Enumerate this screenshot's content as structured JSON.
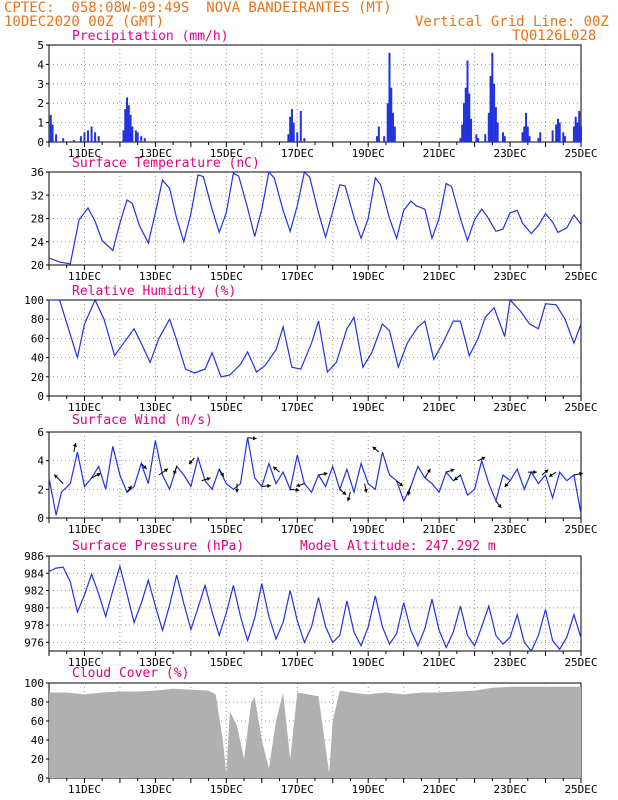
{
  "header": {
    "line1_left": "CPTEC:  058:08W-09:49S  NOVA BANDEIRANTES (MT)",
    "line2_left": "10DEC2020 00Z (GMT)",
    "line2_right": "Vertical Grid Line: 00Z",
    "line3_right": "TQ0126L028"
  },
  "colors": {
    "header": "#e8731a",
    "title": "#e0008a",
    "series": "#2233dd",
    "cloud": "#b0b0b0"
  },
  "x_axis": {
    "ticks": [
      "11DEC",
      "13DEC",
      "15DEC",
      "17DEC",
      "19DEC",
      "21DEC",
      "23DEC",
      "25DEC"
    ],
    "grid": "00Z daily, dotted",
    "range_days": [
      10,
      25
    ]
  },
  "chart_data": [
    {
      "type": "bar",
      "title": "Precipitation (mm/h)",
      "ylim": [
        0,
        5
      ],
      "yticks": [
        0,
        1,
        2,
        3,
        4,
        5
      ],
      "bars": [
        [
          10.05,
          1.4
        ],
        [
          10.1,
          0.9
        ],
        [
          10.2,
          0.4
        ],
        [
          10.4,
          0.2
        ],
        [
          10.7,
          0.1
        ],
        [
          10.9,
          0.3
        ],
        [
          11.0,
          0.5
        ],
        [
          11.1,
          0.6
        ],
        [
          11.2,
          0.8
        ],
        [
          11.3,
          0.5
        ],
        [
          11.4,
          0.3
        ],
        [
          12.1,
          0.6
        ],
        [
          12.15,
          1.7
        ],
        [
          12.2,
          2.3
        ],
        [
          12.25,
          1.9
        ],
        [
          12.3,
          1.4
        ],
        [
          12.35,
          0.8
        ],
        [
          12.45,
          0.6
        ],
        [
          12.5,
          0.5
        ],
        [
          12.6,
          0.3
        ],
        [
          12.7,
          0.2
        ],
        [
          16.75,
          0.4
        ],
        [
          16.8,
          1.3
        ],
        [
          16.85,
          1.7
        ],
        [
          16.9,
          1.0
        ],
        [
          17.0,
          0.5
        ],
        [
          17.1,
          1.6
        ],
        [
          17.2,
          0.2
        ],
        [
          19.25,
          0.3
        ],
        [
          19.3,
          0.8
        ],
        [
          19.45,
          0.3
        ],
        [
          19.55,
          2.0
        ],
        [
          19.6,
          4.6
        ],
        [
          19.65,
          2.8
        ],
        [
          19.7,
          1.5
        ],
        [
          19.75,
          0.8
        ],
        [
          21.6,
          0.2
        ],
        [
          21.65,
          0.9
        ],
        [
          21.7,
          2.0
        ],
        [
          21.75,
          2.8
        ],
        [
          21.8,
          4.2
        ],
        [
          21.85,
          2.5
        ],
        [
          21.9,
          1.2
        ],
        [
          22.05,
          0.4
        ],
        [
          22.1,
          0.2
        ],
        [
          22.3,
          0.4
        ],
        [
          22.4,
          1.5
        ],
        [
          22.45,
          3.4
        ],
        [
          22.5,
          4.6
        ],
        [
          22.55,
          3.0
        ],
        [
          22.6,
          1.8
        ],
        [
          22.65,
          1.0
        ],
        [
          22.8,
          0.5
        ],
        [
          22.85,
          0.3
        ],
        [
          23.35,
          0.5
        ],
        [
          23.4,
          0.8
        ],
        [
          23.45,
          1.5
        ],
        [
          23.5,
          0.8
        ],
        [
          23.55,
          0.3
        ],
        [
          23.8,
          0.2
        ],
        [
          23.85,
          0.5
        ],
        [
          24.2,
          0.6
        ],
        [
          24.3,
          0.9
        ],
        [
          24.35,
          1.2
        ],
        [
          24.4,
          1.0
        ],
        [
          24.5,
          0.5
        ],
        [
          24.55,
          0.3
        ],
        [
          24.8,
          0.8
        ],
        [
          24.85,
          1.3
        ],
        [
          24.9,
          1.0
        ],
        [
          24.95,
          1.6
        ],
        [
          25.0,
          0.8
        ]
      ]
    },
    {
      "type": "line",
      "title": "Surface Temperature (nC)",
      "ylim": [
        20,
        36
      ],
      "yticks": [
        20,
        24,
        28,
        32,
        36
      ],
      "x": [
        10.0,
        10.3,
        10.6,
        10.85,
        11.1,
        11.3,
        11.5,
        11.8,
        12.0,
        12.2,
        12.35,
        12.55,
        12.8,
        13.0,
        13.2,
        13.4,
        13.6,
        13.8,
        14.0,
        14.2,
        14.35,
        14.6,
        14.8,
        15.0,
        15.2,
        15.35,
        15.6,
        15.8,
        16.0,
        16.2,
        16.35,
        16.6,
        16.8,
        17.0,
        17.2,
        17.35,
        17.6,
        17.8,
        18.0,
        18.2,
        18.35,
        18.6,
        18.8,
        19.0,
        19.2,
        19.35,
        19.6,
        19.8,
        20.0,
        20.2,
        20.35,
        20.6,
        20.8,
        21.0,
        21.2,
        21.35,
        21.6,
        21.8,
        22.0,
        22.2,
        22.35,
        22.6,
        22.8,
        23.0,
        23.2,
        23.35,
        23.6,
        23.8,
        24.0,
        24.2,
        24.35,
        24.6,
        24.8,
        25.0
      ],
      "y": [
        21.2,
        20.5,
        20.2,
        27.8,
        29.8,
        27.5,
        24.2,
        22.5,
        27.2,
        31.2,
        30.6,
        26.8,
        23.8,
        29.0,
        34.6,
        33.2,
        28.0,
        24.0,
        28.8,
        35.5,
        35.2,
        29.6,
        25.6,
        29.0,
        35.8,
        35.3,
        29.8,
        24.9,
        29.6,
        36.0,
        35.0,
        29.4,
        25.8,
        30.2,
        36.0,
        35.1,
        29.0,
        24.8,
        29.2,
        33.8,
        33.6,
        28.2,
        24.6,
        28.0,
        35.0,
        33.8,
        28.0,
        24.6,
        29.4,
        31.0,
        30.2,
        29.6,
        24.6,
        28.0,
        34.0,
        33.5,
        28.0,
        24.2,
        27.8,
        29.6,
        28.4,
        25.8,
        26.2,
        29.0,
        29.4,
        27.2,
        25.4,
        26.8,
        28.8,
        27.4,
        25.6,
        26.4,
        28.6,
        27.0
      ]
    },
    {
      "type": "line",
      "title": "Relative Humidity (%)",
      "ylim": [
        0,
        100
      ],
      "yticks": [
        0,
        20,
        40,
        60,
        80,
        100
      ],
      "x": [
        10.0,
        10.3,
        10.55,
        10.8,
        11.0,
        11.3,
        11.55,
        11.85,
        12.1,
        12.4,
        12.6,
        12.85,
        13.1,
        13.4,
        13.6,
        13.85,
        14.1,
        14.4,
        14.6,
        14.85,
        15.1,
        15.4,
        15.6,
        15.85,
        16.1,
        16.4,
        16.6,
        16.85,
        17.1,
        17.4,
        17.6,
        17.85,
        18.1,
        18.4,
        18.6,
        18.85,
        19.1,
        19.4,
        19.6,
        19.85,
        20.1,
        20.4,
        20.6,
        20.85,
        21.1,
        21.4,
        21.6,
        21.85,
        22.1,
        22.3,
        22.55,
        22.85,
        23.0,
        23.3,
        23.55,
        23.8,
        24.0,
        24.3,
        24.55,
        24.8,
        25.0
      ],
      "y": [
        100,
        100,
        70,
        40,
        75,
        100,
        80,
        42,
        55,
        70,
        55,
        35,
        60,
        80,
        58,
        28,
        24,
        28,
        45,
        20,
        22,
        33,
        46,
        25,
        32,
        48,
        72,
        30,
        28,
        55,
        78,
        25,
        35,
        70,
        82,
        30,
        45,
        75,
        68,
        30,
        55,
        72,
        78,
        38,
        55,
        78,
        78,
        42,
        60,
        82,
        92,
        62,
        100,
        88,
        75,
        70,
        96,
        95,
        80,
        55,
        75
      ]
    },
    {
      "type": "line",
      "title": "Surface Wind (m/s)",
      "ylim": [
        0,
        6
      ],
      "yticks": [
        0,
        2,
        4,
        6
      ],
      "x": [
        10.0,
        10.2,
        10.35,
        10.6,
        10.8,
        11.0,
        11.2,
        11.4,
        11.6,
        11.8,
        12.0,
        12.2,
        12.4,
        12.6,
        12.8,
        13.0,
        13.2,
        13.4,
        13.6,
        13.8,
        14.0,
        14.2,
        14.4,
        14.6,
        14.8,
        15.0,
        15.2,
        15.4,
        15.6,
        15.8,
        16.0,
        16.2,
        16.4,
        16.6,
        16.8,
        17.0,
        17.2,
        17.4,
        17.6,
        17.8,
        18.0,
        18.2,
        18.4,
        18.6,
        18.8,
        19.0,
        19.2,
        19.4,
        19.6,
        19.8,
        20.0,
        20.2,
        20.4,
        20.6,
        20.8,
        21.0,
        21.2,
        21.4,
        21.6,
        21.8,
        22.0,
        22.2,
        22.4,
        22.6,
        22.8,
        23.0,
        23.2,
        23.4,
        23.6,
        23.8,
        24.0,
        24.2,
        24.4,
        24.6,
        24.8,
        25.0
      ],
      "y": [
        2.8,
        0.2,
        1.8,
        2.4,
        4.6,
        2.2,
        2.8,
        3.6,
        2.0,
        5.0,
        3.0,
        1.8,
        2.2,
        3.8,
        2.4,
        5.4,
        3.0,
        2.0,
        3.6,
        3.0,
        2.2,
        4.2,
        2.6,
        2.0,
        3.4,
        2.4,
        2.0,
        2.4,
        5.6,
        2.8,
        2.2,
        3.8,
        2.4,
        3.2,
        2.0,
        4.4,
        2.4,
        1.8,
        3.0,
        2.2,
        3.6,
        2.0,
        3.4,
        1.8,
        3.8,
        2.4,
        2.0,
        4.6,
        3.0,
        2.6,
        1.2,
        2.2,
        3.6,
        2.8,
        2.4,
        1.8,
        3.2,
        2.6,
        3.0,
        1.6,
        2.0,
        4.0,
        2.4,
        1.2,
        3.0,
        2.6,
        3.4,
        2.0,
        3.2,
        2.4,
        3.0,
        1.4,
        3.2,
        2.6,
        3.0,
        0.3
      ],
      "vectors": [
        [
          10.4,
          -1,
          1
        ],
        [
          10.7,
          0.2,
          1
        ],
        [
          11.2,
          1,
          0.5
        ],
        [
          12.2,
          0.5,
          0.7
        ],
        [
          12.6,
          0.6,
          -0.6
        ],
        [
          13.1,
          1,
          0.7
        ],
        [
          13.6,
          -0.3,
          -0.9
        ],
        [
          14.1,
          -0.6,
          -0.7
        ],
        [
          14.3,
          1,
          0.3
        ],
        [
          14.8,
          0.5,
          -0.8
        ],
        [
          15.3,
          0,
          -1
        ],
        [
          15.6,
          1,
          -0.1
        ],
        [
          16.0,
          1,
          0.1
        ],
        [
          16.5,
          -0.7,
          0.6
        ],
        [
          16.8,
          1,
          -0.1
        ],
        [
          17.2,
          -0.9,
          -0.3
        ],
        [
          17.6,
          1,
          0.2
        ],
        [
          18.2,
          0.7,
          -0.6
        ],
        [
          18.5,
          -0.3,
          -1
        ],
        [
          18.9,
          0.2,
          -1
        ],
        [
          19.3,
          -0.7,
          0.6
        ],
        [
          19.8,
          0.7,
          -0.6
        ],
        [
          20.2,
          -0.3,
          -1
        ],
        [
          20.6,
          0.6,
          1
        ],
        [
          21.2,
          0.9,
          0.3
        ],
        [
          21.6,
          -0.7,
          -0.6
        ],
        [
          22.1,
          0.8,
          0.4
        ],
        [
          22.6,
          0.6,
          -0.8
        ],
        [
          23.0,
          -0.6,
          -0.7
        ],
        [
          23.5,
          1,
          0
        ],
        [
          23.9,
          0.7,
          0.6
        ],
        [
          24.3,
          -0.8,
          -0.5
        ],
        [
          24.8,
          1,
          0.2
        ]
      ]
    },
    {
      "type": "line",
      "title": "Surface Pressure (hPa)",
      "annotation": "Model Altitude: 247.292 m",
      "ylim": [
        975,
        986
      ],
      "yticks": [
        976,
        978,
        980,
        982,
        984,
        986
      ],
      "x": [
        10.0,
        10.2,
        10.4,
        10.6,
        10.8,
        11.0,
        11.2,
        11.4,
        11.6,
        11.8,
        12.0,
        12.2,
        12.4,
        12.6,
        12.8,
        13.0,
        13.2,
        13.4,
        13.6,
        13.8,
        14.0,
        14.2,
        14.4,
        14.6,
        14.8,
        15.0,
        15.2,
        15.4,
        15.6,
        15.8,
        16.0,
        16.2,
        16.4,
        16.6,
        16.8,
        17.0,
        17.2,
        17.4,
        17.6,
        17.8,
        18.0,
        18.2,
        18.4,
        18.6,
        18.8,
        19.0,
        19.2,
        19.4,
        19.6,
        19.8,
        20.0,
        20.2,
        20.4,
        20.6,
        20.8,
        21.0,
        21.2,
        21.4,
        21.6,
        21.8,
        22.0,
        22.2,
        22.4,
        22.6,
        22.8,
        23.0,
        23.2,
        23.4,
        23.6,
        23.8,
        24.0,
        24.2,
        24.4,
        24.6,
        24.8,
        25.0
      ],
      "y": [
        984.2,
        984.6,
        984.7,
        983.0,
        979.5,
        981.5,
        983.9,
        981.6,
        979.0,
        982.0,
        984.8,
        981.6,
        978.3,
        980.5,
        983.2,
        980.2,
        977.4,
        980.3,
        983.8,
        980.5,
        977.5,
        980.0,
        982.6,
        979.5,
        976.8,
        979.4,
        982.6,
        979.0,
        976.2,
        978.8,
        982.8,
        979.0,
        976.4,
        978.3,
        982.0,
        978.5,
        976.0,
        977.8,
        981.2,
        977.8,
        976.0,
        976.8,
        980.8,
        977.2,
        975.6,
        977.8,
        981.4,
        977.8,
        975.8,
        977.0,
        980.6,
        977.4,
        975.6,
        977.6,
        981.0,
        977.4,
        975.4,
        977.2,
        980.2,
        976.8,
        975.6,
        977.8,
        980.2,
        976.8,
        975.8,
        976.6,
        979.2,
        976.0,
        975.0,
        976.8,
        979.8,
        976.2,
        975.2,
        976.6,
        979.2,
        976.5
      ]
    },
    {
      "type": "area",
      "title": "Cloud Cover (%)",
      "ylim": [
        0,
        100
      ],
      "yticks": [
        0,
        20,
        40,
        60,
        80,
        100
      ],
      "x": [
        10.0,
        10.5,
        11.0,
        11.5,
        12.0,
        12.5,
        13.0,
        13.5,
        14.0,
        14.5,
        14.7,
        14.9,
        15.0,
        15.1,
        15.3,
        15.5,
        15.7,
        15.8,
        16.0,
        16.2,
        16.4,
        16.6,
        16.8,
        17.0,
        17.3,
        17.6,
        17.9,
        18.0,
        18.2,
        18.5,
        19.0,
        19.5,
        20.0,
        20.5,
        21.0,
        21.5,
        22.0,
        22.5,
        23.0,
        23.5,
        24.0,
        24.5,
        25.0
      ],
      "y": [
        90,
        90,
        88,
        90,
        91,
        91,
        92,
        94,
        93,
        92,
        88,
        40,
        5,
        70,
        55,
        20,
        80,
        85,
        40,
        10,
        60,
        90,
        20,
        90,
        88,
        86,
        5,
        60,
        92,
        90,
        88,
        90,
        88,
        90,
        90,
        91,
        92,
        95,
        96,
        96,
        96,
        96,
        96
      ]
    }
  ]
}
